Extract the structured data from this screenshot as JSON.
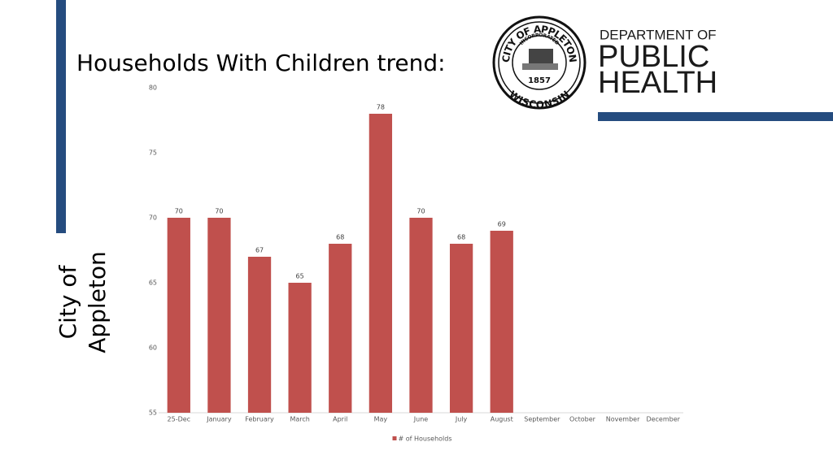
{
  "slide": {
    "title": "Households With Children trend:",
    "side_text": [
      "City of",
      "Appleton"
    ],
    "seal": {
      "top": "CITY OF APPLETON",
      "middle": "INCORPORATED",
      "year": "1857",
      "bottom": "WISCONSIN"
    },
    "logo": [
      "DEPARTMENT OF",
      "PUBLIC",
      "HEALTH"
    ]
  },
  "chart_data": {
    "type": "bar",
    "categories": [
      "25-Dec",
      "January",
      "February",
      "March",
      "April",
      "May",
      "June",
      "July",
      "August",
      "September",
      "October",
      "November",
      "December"
    ],
    "series": [
      {
        "name": "# of Households",
        "color": "#c0504d",
        "values": [
          70,
          70,
          67,
          65,
          68,
          78,
          70,
          68,
          69,
          null,
          null,
          null,
          null
        ]
      }
    ],
    "ylim": [
      55,
      80
    ],
    "yticks": [
      55,
      60,
      65,
      70,
      75,
      80
    ],
    "grid": false,
    "legend": "bottom",
    "data_labels": true
  }
}
